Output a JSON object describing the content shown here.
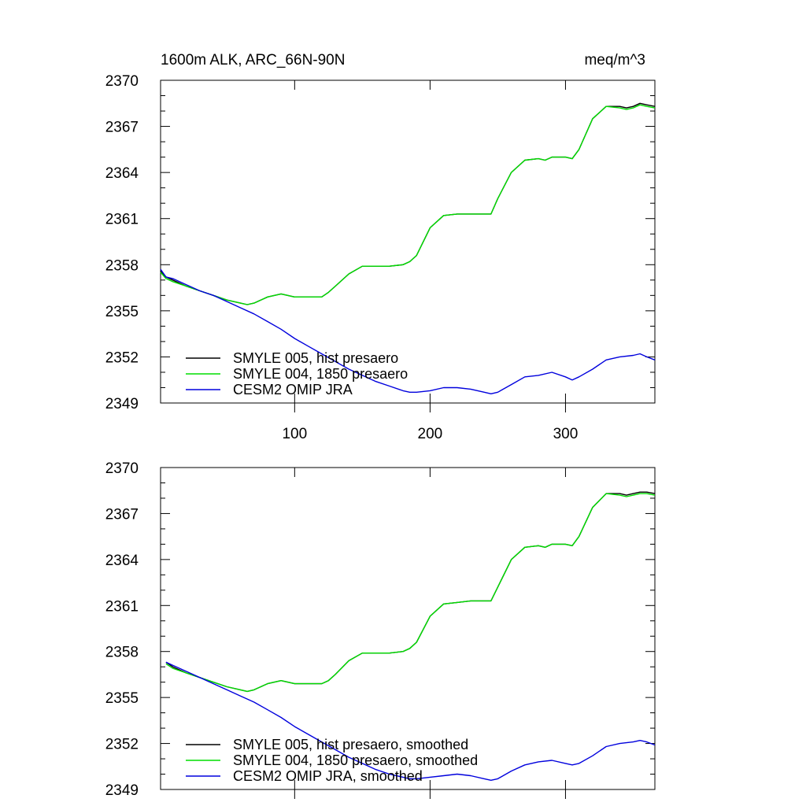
{
  "header": {
    "left_title": "1600m ALK, ARC_66N-90N",
    "right_title": "meq/m^3"
  },
  "colors": {
    "smyle005": "#000000",
    "smyle004": "#00dd00",
    "omip": "#0000dd"
  },
  "chart_data": [
    {
      "type": "line",
      "title": "1600m ALK, ARC_66N-90N",
      "units": "meq/m^3",
      "xlim": [
        1,
        366
      ],
      "ylim": [
        2349,
        2370
      ],
      "x_ticks": [
        100,
        200,
        300
      ],
      "y_ticks": [
        2349,
        2352,
        2355,
        2358,
        2361,
        2364,
        2367,
        2370
      ],
      "show_x_tick_labels": true,
      "legend_position": "bottom-left",
      "grid": false,
      "series": [
        {
          "name": "SMYLE 005, hist presaero",
          "color": "#000000",
          "x": [
            1,
            5,
            10,
            20,
            30,
            40,
            50,
            60,
            65,
            70,
            75,
            80,
            90,
            100,
            110,
            120,
            125,
            130,
            140,
            150,
            160,
            170,
            180,
            185,
            190,
            200,
            210,
            220,
            230,
            240,
            245,
            250,
            260,
            270,
            280,
            285,
            290,
            300,
            305,
            310,
            320,
            330,
            340,
            345,
            350,
            355,
            360,
            366
          ],
          "y": [
            2357.6,
            2357.2,
            2357.0,
            2356.6,
            2356.3,
            2356.0,
            2355.7,
            2355.5,
            2355.4,
            2355.5,
            2355.7,
            2355.9,
            2356.1,
            2355.9,
            2355.9,
            2355.9,
            2356.2,
            2356.6,
            2357.4,
            2357.9,
            2357.9,
            2357.9,
            2358.0,
            2358.2,
            2358.6,
            2360.4,
            2361.2,
            2361.3,
            2361.3,
            2361.3,
            2361.3,
            2362.3,
            2364.0,
            2364.8,
            2364.9,
            2364.8,
            2365.0,
            2365.0,
            2364.9,
            2365.5,
            2367.5,
            2368.3,
            2368.3,
            2368.2,
            2368.3,
            2368.5,
            2368.4,
            2368.3
          ]
        },
        {
          "name": "SMYLE 004, 1850 presaero",
          "color": "#00dd00",
          "x": [
            1,
            5,
            10,
            20,
            30,
            40,
            50,
            60,
            65,
            70,
            75,
            80,
            90,
            100,
            110,
            120,
            125,
            130,
            140,
            150,
            160,
            170,
            180,
            185,
            190,
            200,
            210,
            220,
            230,
            240,
            245,
            250,
            260,
            270,
            280,
            285,
            290,
            300,
            305,
            310,
            320,
            330,
            340,
            345,
            350,
            355,
            360,
            366
          ],
          "y": [
            2357.5,
            2357.1,
            2356.9,
            2356.6,
            2356.3,
            2356.0,
            2355.7,
            2355.5,
            2355.4,
            2355.5,
            2355.7,
            2355.9,
            2356.1,
            2355.9,
            2355.9,
            2355.9,
            2356.2,
            2356.6,
            2357.4,
            2357.9,
            2357.9,
            2357.9,
            2358.0,
            2358.2,
            2358.6,
            2360.4,
            2361.2,
            2361.3,
            2361.3,
            2361.3,
            2361.3,
            2362.3,
            2364.0,
            2364.8,
            2364.9,
            2364.8,
            2365.0,
            2365.0,
            2364.9,
            2365.5,
            2367.5,
            2368.3,
            2368.2,
            2368.1,
            2368.2,
            2368.4,
            2368.3,
            2368.2
          ]
        },
        {
          "name": "CESM2 OMIP JRA",
          "color": "#0000dd",
          "x": [
            1,
            5,
            10,
            20,
            30,
            40,
            50,
            60,
            70,
            80,
            90,
            100,
            110,
            120,
            130,
            140,
            150,
            160,
            170,
            180,
            185,
            190,
            200,
            210,
            220,
            230,
            240,
            245,
            250,
            260,
            270,
            280,
            290,
            300,
            305,
            310,
            320,
            330,
            340,
            350,
            355,
            360,
            366
          ],
          "y": [
            2357.7,
            2357.2,
            2357.1,
            2356.7,
            2356.3,
            2356.0,
            2355.6,
            2355.2,
            2354.8,
            2354.3,
            2353.8,
            2353.2,
            2352.7,
            2352.2,
            2351.7,
            2351.2,
            2350.8,
            2350.4,
            2350.1,
            2349.8,
            2349.7,
            2349.7,
            2349.8,
            2350.0,
            2350.0,
            2349.9,
            2349.7,
            2349.6,
            2349.7,
            2350.2,
            2350.7,
            2350.8,
            2351.0,
            2350.7,
            2350.5,
            2350.7,
            2351.2,
            2351.8,
            2352.0,
            2352.1,
            2352.2,
            2352.0,
            2351.8
          ]
        }
      ]
    },
    {
      "type": "line",
      "xlim": [
        1,
        366
      ],
      "ylim": [
        2349,
        2370
      ],
      "x_ticks": [
        100,
        200,
        300
      ],
      "y_ticks": [
        2349,
        2352,
        2355,
        2358,
        2361,
        2364,
        2367,
        2370
      ],
      "show_x_tick_labels": false,
      "legend_position": "bottom-left",
      "grid": false,
      "series": [
        {
          "name": "SMYLE 005, hist presaero, smoothed",
          "color": "#000000",
          "x": [
            5,
            10,
            20,
            30,
            40,
            50,
            60,
            65,
            70,
            75,
            80,
            90,
            100,
            110,
            120,
            125,
            130,
            140,
            150,
            160,
            170,
            180,
            185,
            190,
            200,
            210,
            220,
            230,
            240,
            245,
            250,
            260,
            270,
            280,
            285,
            290,
            300,
            305,
            310,
            320,
            330,
            340,
            345,
            350,
            355,
            360,
            366
          ],
          "y": [
            2357.3,
            2357.0,
            2356.6,
            2356.3,
            2356.0,
            2355.7,
            2355.5,
            2355.4,
            2355.5,
            2355.7,
            2355.9,
            2356.1,
            2355.9,
            2355.9,
            2355.9,
            2356.1,
            2356.5,
            2357.4,
            2357.9,
            2357.9,
            2357.9,
            2358.0,
            2358.2,
            2358.6,
            2360.3,
            2361.1,
            2361.2,
            2361.3,
            2361.3,
            2361.3,
            2362.2,
            2364.0,
            2364.8,
            2364.9,
            2364.8,
            2365.0,
            2365.0,
            2364.9,
            2365.5,
            2367.4,
            2368.3,
            2368.3,
            2368.2,
            2368.3,
            2368.4,
            2368.4,
            2368.3
          ]
        },
        {
          "name": "SMYLE 004, 1850 presaero, smoothed",
          "color": "#00dd00",
          "x": [
            5,
            10,
            20,
            30,
            40,
            50,
            60,
            65,
            70,
            75,
            80,
            90,
            100,
            110,
            120,
            125,
            130,
            140,
            150,
            160,
            170,
            180,
            185,
            190,
            200,
            210,
            220,
            230,
            240,
            245,
            250,
            260,
            270,
            280,
            285,
            290,
            300,
            305,
            310,
            320,
            330,
            340,
            345,
            350,
            355,
            360,
            366
          ],
          "y": [
            2357.2,
            2356.9,
            2356.6,
            2356.3,
            2356.0,
            2355.7,
            2355.5,
            2355.4,
            2355.5,
            2355.7,
            2355.9,
            2356.1,
            2355.9,
            2355.9,
            2355.9,
            2356.1,
            2356.5,
            2357.4,
            2357.9,
            2357.9,
            2357.9,
            2358.0,
            2358.2,
            2358.6,
            2360.3,
            2361.1,
            2361.2,
            2361.3,
            2361.3,
            2361.3,
            2362.2,
            2364.0,
            2364.8,
            2364.9,
            2364.8,
            2365.0,
            2365.0,
            2364.9,
            2365.5,
            2367.4,
            2368.3,
            2368.2,
            2368.1,
            2368.2,
            2368.3,
            2368.3,
            2368.2
          ]
        },
        {
          "name": "CESM2 OMIP JRA, smoothed",
          "color": "#0000dd",
          "x": [
            5,
            10,
            20,
            30,
            40,
            50,
            60,
            70,
            80,
            90,
            100,
            110,
            120,
            130,
            140,
            150,
            160,
            170,
            180,
            185,
            190,
            200,
            210,
            220,
            230,
            240,
            245,
            250,
            260,
            270,
            280,
            290,
            300,
            305,
            310,
            320,
            330,
            340,
            350,
            355,
            360,
            366
          ],
          "y": [
            2357.3,
            2357.1,
            2356.7,
            2356.3,
            2355.9,
            2355.5,
            2355.1,
            2354.7,
            2354.2,
            2353.7,
            2353.1,
            2352.6,
            2352.1,
            2351.6,
            2351.1,
            2350.7,
            2350.3,
            2350.0,
            2349.8,
            2349.7,
            2349.7,
            2349.8,
            2349.9,
            2350.0,
            2349.9,
            2349.7,
            2349.6,
            2349.7,
            2350.2,
            2350.6,
            2350.8,
            2350.9,
            2350.7,
            2350.6,
            2350.7,
            2351.2,
            2351.8,
            2352.0,
            2352.1,
            2352.2,
            2352.1,
            2351.9
          ]
        }
      ]
    }
  ]
}
